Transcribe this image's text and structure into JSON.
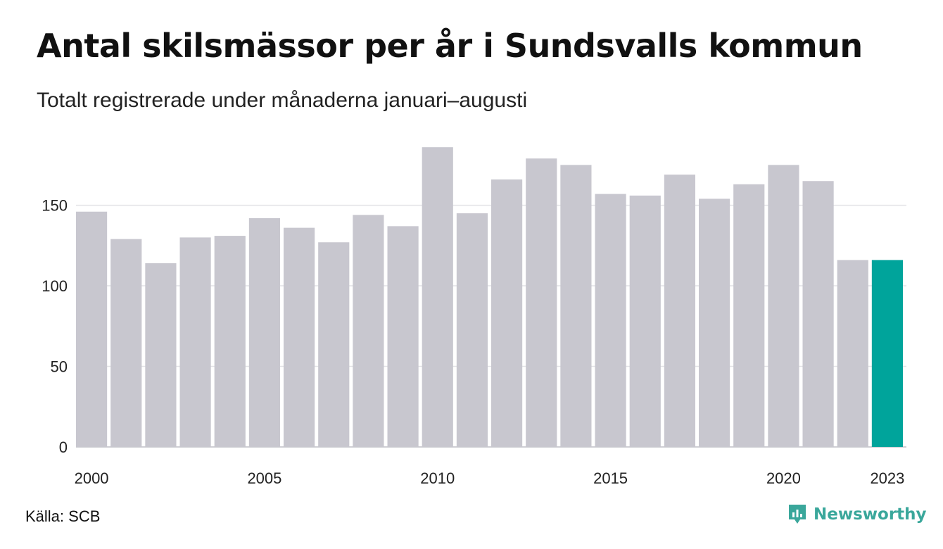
{
  "title": "Antal skilsmässor per år i Sundsvalls kommun",
  "subtitle": "Totalt registrerade under månaderna januari–augusti",
  "source": "Källa: SCB",
  "brand": {
    "name": "Newsworthy",
    "icon": "newsworthy-logo-icon"
  },
  "colors": {
    "bar": "#c8c7cf",
    "highlight": "#00a49b",
    "grid": "#e2e2e6",
    "axis": "#cfcfd4",
    "brand": "#3aa79b"
  },
  "chart_data": {
    "type": "bar",
    "categories": [
      "2000",
      "2001",
      "2002",
      "2003",
      "2004",
      "2005",
      "2006",
      "2007",
      "2008",
      "2009",
      "2010",
      "2011",
      "2012",
      "2013",
      "2014",
      "2015",
      "2016",
      "2017",
      "2018",
      "2019",
      "2020",
      "2021",
      "2022",
      "2023"
    ],
    "values": [
      146,
      129,
      114,
      130,
      131,
      142,
      136,
      127,
      144,
      137,
      186,
      145,
      166,
      179,
      175,
      157,
      156,
      169,
      154,
      163,
      175,
      165,
      116,
      116
    ],
    "highlight_category": "2023",
    "x_tick_labels": [
      "2000",
      "2005",
      "2010",
      "2015",
      "2020",
      "2023"
    ],
    "y_ticks": [
      0,
      50,
      100,
      150
    ],
    "ylim": [
      0,
      190
    ],
    "grid": true,
    "xlabel": "",
    "ylabel": ""
  }
}
